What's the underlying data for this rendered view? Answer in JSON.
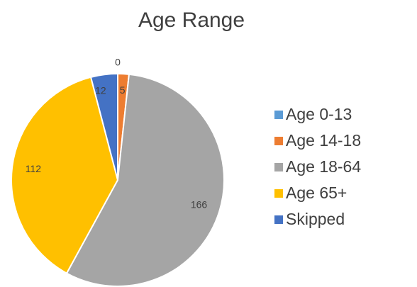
{
  "chart_data": {
    "type": "pie",
    "title": "Age Range",
    "categories": [
      "Age 0-13",
      "Age 14-18",
      "Age 18-64",
      "Age 65+",
      "Skipped"
    ],
    "values": [
      0,
      5,
      166,
      112,
      12
    ],
    "colors": [
      "#5b9bd5",
      "#ed7d31",
      "#a5a5a5",
      "#ffc000",
      "#4472c4"
    ],
    "legend": "right"
  }
}
